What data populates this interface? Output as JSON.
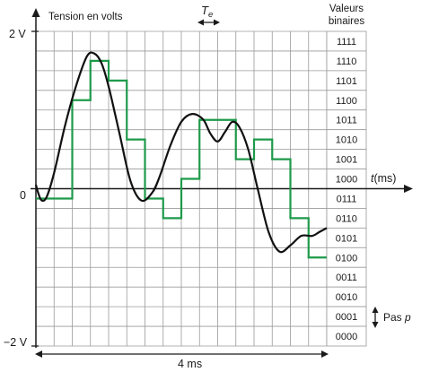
{
  "labels": {
    "y_axis_title": "Tension en volts",
    "y_top": "2 V",
    "y_zero": "0",
    "y_bottom": "−2 V",
    "te_main": "T",
    "te_sub": "e",
    "binary_title_line1": "Valeurs",
    "binary_title_line2": "binaires",
    "time_italic": "t",
    "time_unit": "(ms)",
    "duration": "4 ms",
    "step_label": "Pas ",
    "step_symbol": "p"
  },
  "binary_codes": [
    "1111",
    "1110",
    "1101",
    "1100",
    "1011",
    "1010",
    "1001",
    "1000",
    "0111",
    "0110",
    "0101",
    "0100",
    "0011",
    "0010",
    "0001",
    "0000"
  ],
  "colors": {
    "curve": "#111111",
    "staircase": "#1e9a4a",
    "grid": "#9a9a9a",
    "axis": "#1a1a1a"
  },
  "chart_data": {
    "type": "line",
    "x_range_ms": [
      0,
      4
    ],
    "y_range_V": [
      -2,
      2
    ],
    "sampling_period_ms": 0.25,
    "quantization_levels": 16,
    "analog_signal": {
      "x": [
        0,
        0.03,
        0.08,
        0.15,
        0.25,
        0.4,
        0.55,
        0.7,
        0.8,
        0.9,
        1.0,
        1.15,
        1.3,
        1.45,
        1.6,
        1.7,
        1.85,
        2.0,
        2.15,
        2.3,
        2.4,
        2.5,
        2.6,
        2.7,
        2.8,
        2.92,
        3.05,
        3.2,
        3.35,
        3.5,
        3.65,
        3.8,
        3.9,
        4.0
      ],
      "y": [
        0.05,
        -0.05,
        -0.15,
        -0.1,
        0.2,
        0.8,
        1.3,
        1.68,
        1.72,
        1.6,
        1.3,
        0.7,
        0.1,
        -0.15,
        -0.05,
        0.15,
        0.55,
        0.85,
        0.95,
        0.88,
        0.7,
        0.6,
        0.72,
        0.85,
        0.78,
        0.5,
        0.0,
        -0.55,
        -0.8,
        -0.72,
        -0.6,
        -0.6,
        -0.55,
        -0.5
      ]
    },
    "quantized_signal": {
      "sample_times_ms": [
        0,
        0.25,
        0.5,
        0.75,
        1.0,
        1.25,
        1.5,
        1.75,
        2.0,
        2.25,
        2.5,
        2.75,
        3.0,
        3.25,
        3.5,
        3.75,
        4.0
      ],
      "levels_V": [
        -0.125,
        -0.125,
        1.125,
        1.625,
        1.375,
        0.625,
        -0.125,
        -0.375,
        0.125,
        0.875,
        0.875,
        0.375,
        0.625,
        0.375,
        -0.375,
        -0.875,
        -0.875
      ]
    }
  }
}
